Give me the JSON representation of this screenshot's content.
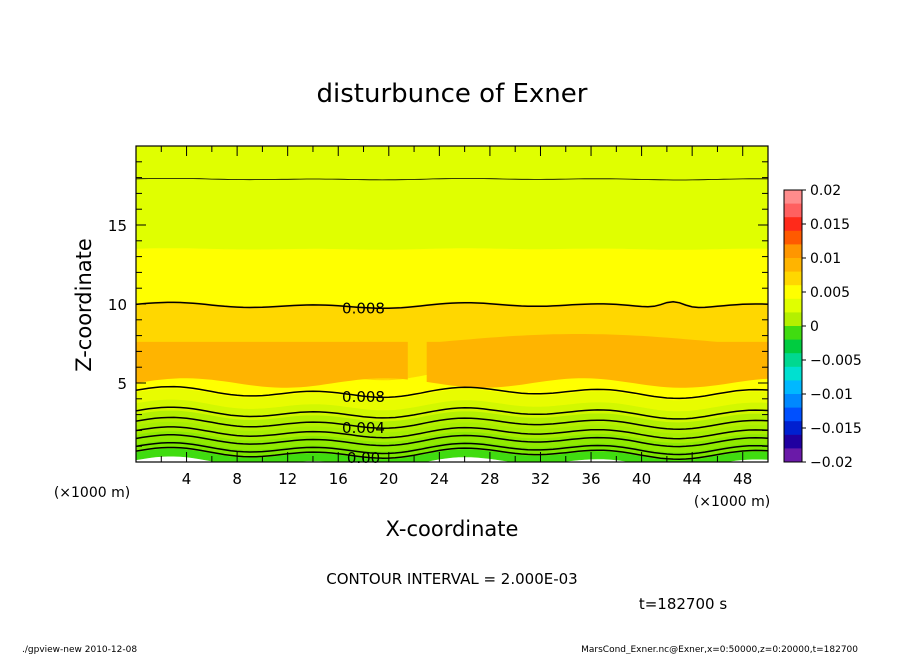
{
  "chart_data": {
    "type": "contour",
    "title": "disturbunce of Exner",
    "xlabel": "X-coordinate",
    "ylabel": "Z-coordinate",
    "x_unit": "(×1000 m)",
    "y_unit": "(×1000 m)",
    "xlim": [
      0,
      50
    ],
    "ylim": [
      0,
      20
    ],
    "x_ticks": [
      4,
      8,
      12,
      16,
      20,
      24,
      28,
      32,
      36,
      40,
      44,
      48
    ],
    "y_ticks": [
      5,
      10,
      15
    ],
    "contour_interval_text": "CONTOUR INTERVAL = 2.000E-03",
    "time_text": "t=182700 s",
    "colorbar": {
      "ticks": [
        0.02,
        0.015,
        0.01,
        0.005,
        0,
        -0.005,
        -0.01,
        -0.015,
        -0.02
      ],
      "tick_labels": [
        "0.02",
        "0.015",
        "0.01",
        "0.005",
        "0",
        "−0.005",
        "−0.01",
        "−0.015",
        "−0.02"
      ],
      "levels": [
        {
          "lo": 0.018,
          "hi": 0.02,
          "color": "#ff8c8c"
        },
        {
          "lo": 0.016,
          "hi": 0.018,
          "color": "#ff6060"
        },
        {
          "lo": 0.014,
          "hi": 0.016,
          "color": "#ff2a1a"
        },
        {
          "lo": 0.012,
          "hi": 0.014,
          "color": "#ff5a00"
        },
        {
          "lo": 0.01,
          "hi": 0.012,
          "color": "#ff9600"
        },
        {
          "lo": 0.008,
          "hi": 0.01,
          "color": "#ffb400"
        },
        {
          "lo": 0.006,
          "hi": 0.008,
          "color": "#ffd700"
        },
        {
          "lo": 0.004,
          "hi": 0.006,
          "color": "#ffff00"
        },
        {
          "lo": 0.002,
          "hi": 0.004,
          "color": "#e0ff00"
        },
        {
          "lo": 0.0,
          "hi": 0.002,
          "color": "#b4f000"
        },
        {
          "lo": -0.002,
          "hi": 0.0,
          "color": "#40dc10"
        },
        {
          "lo": -0.004,
          "hi": -0.002,
          "color": "#00cc40"
        },
        {
          "lo": -0.006,
          "hi": -0.004,
          "color": "#00d890"
        },
        {
          "lo": -0.008,
          "hi": -0.006,
          "color": "#00e0d0"
        },
        {
          "lo": -0.01,
          "hi": -0.008,
          "color": "#00b8ff"
        },
        {
          "lo": -0.012,
          "hi": -0.01,
          "color": "#0088ff"
        },
        {
          "lo": -0.014,
          "hi": -0.012,
          "color": "#0050ff"
        },
        {
          "lo": -0.016,
          "hi": -0.014,
          "color": "#0020d0"
        },
        {
          "lo": -0.018,
          "hi": -0.016,
          "color": "#2000a0"
        },
        {
          "lo": -0.02,
          "hi": -0.018,
          "color": "#6a1aa8"
        }
      ]
    },
    "filled_bands": [
      {
        "z_lo": 0.0,
        "z_hi": 0.5,
        "color": "#40dc10"
      },
      {
        "z_lo": 0.5,
        "z_hi": 1.0,
        "color": "#7de600"
      },
      {
        "z_lo": 1.0,
        "z_hi": 1.6,
        "color": "#90ea00"
      },
      {
        "z_lo": 1.6,
        "z_hi": 2.2,
        "color": "#a8ee00"
      },
      {
        "z_lo": 2.2,
        "z_hi": 2.9,
        "color": "#b4f000"
      },
      {
        "z_lo": 2.9,
        "z_hi": 3.6,
        "color": "#d2f800"
      },
      {
        "z_lo": 3.6,
        "z_hi": 4.3,
        "color": "#e8fc00"
      },
      {
        "z_lo": 4.3,
        "z_hi": 5.5,
        "color": "#ffff00"
      },
      {
        "z_lo": 5.5,
        "z_hi": 10.0,
        "color": "#ffd700"
      },
      {
        "z_lo": 10.0,
        "z_hi": 13.5,
        "color": "#ffff00"
      },
      {
        "z_lo": 13.5,
        "z_hi": 20.0,
        "color": "#e0ff00"
      }
    ],
    "orange_region": {
      "color": "#ffb400",
      "z_lo": 5.0,
      "z_hi": 7.6,
      "gap_x": [
        21.5,
        23.0
      ]
    },
    "contours": [
      {
        "z": 0.55,
        "label": "0.00"
      },
      {
        "z": 0.85,
        "label": ""
      },
      {
        "z": 1.35,
        "label": ""
      },
      {
        "z": 1.85,
        "label": ""
      },
      {
        "z": 2.45,
        "label": "0.004"
      },
      {
        "z": 3.1,
        "label": ""
      },
      {
        "z": 4.4,
        "label": "0.008"
      },
      {
        "z": 9.9,
        "label": "0.008"
      },
      {
        "z": 17.9,
        "label": ""
      }
    ]
  },
  "footer": {
    "left": "./gpview-new  2010-12-08",
    "right": "MarsCond_Exner.nc@Exner,x=0:50000,z=0:20000,t=182700"
  }
}
